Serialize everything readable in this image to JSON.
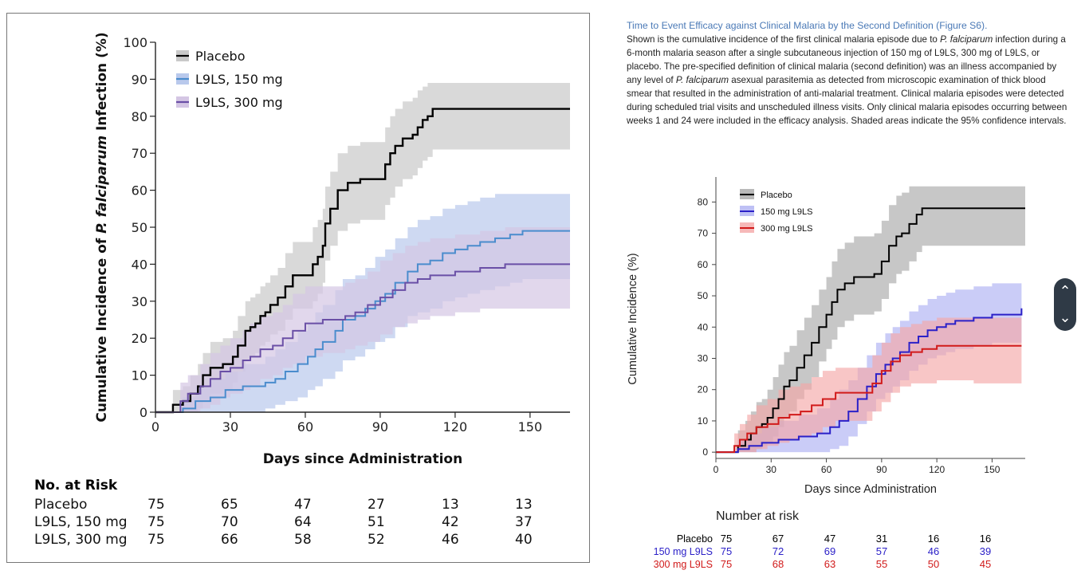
{
  "left_chart": {
    "ylabel_pre": "Cumulative Incidence of ",
    "ylabel_italic": "P. falciparum",
    "ylabel_post": " Infection (%)",
    "xlabel": "Days since Administration",
    "risk_title": "No. at Risk",
    "risk_rows": [
      {
        "label": "Placebo",
        "values": [
          "75",
          "65",
          "47",
          "27",
          "13",
          "13"
        ]
      },
      {
        "label": "L9LS, 150 mg",
        "values": [
          "75",
          "70",
          "64",
          "51",
          "42",
          "37"
        ]
      },
      {
        "label": "L9LS, 300 mg",
        "values": [
          "75",
          "66",
          "58",
          "52",
          "46",
          "40"
        ]
      }
    ]
  },
  "caption": {
    "title": "Time to Event Efficacy against Clinical Malaria by the Second Definition (Figure S6).",
    "parts": [
      {
        "t": "Shown is the cumulative incidence of the first clinical malaria episode due to "
      },
      {
        "t": "P. falciparum",
        "i": true
      },
      {
        "t": " infection during a 6-month malaria season after a single subcutaneous injection of 150 mg of L9LS, 300 mg of L9LS, or placebo. The pre-specified definition of clinical malaria (second definition) was an illness accompanied by any level of "
      },
      {
        "t": "P. falciparum",
        "i": true
      },
      {
        "t": " asexual parasitemia as detected from microscopic examination of thick blood smear that resulted in the administration of anti-malarial treatment. Clinical malaria episodes were detected during scheduled trial visits and unscheduled illness visits. Only clinical malaria episodes occurring between weeks 1 and 24 were included in the efficacy analysis. Shaded areas indicate the 95% confidence intervals."
      }
    ]
  },
  "right_chart": {
    "ylabel": "Cumulative Incidence (%)",
    "xlabel": "Days since Administration",
    "risk_title": "Number at risk",
    "risk_rows": [
      {
        "label": "Placebo",
        "color": "#000000",
        "values": [
          "75",
          "67",
          "47",
          "31",
          "16",
          "16"
        ]
      },
      {
        "label": "150 mg L9LS",
        "color": "#2b20c8",
        "values": [
          "75",
          "72",
          "69",
          "57",
          "46",
          "39"
        ]
      },
      {
        "label": "300 mg L9LS",
        "color": "#d11a1a",
        "values": [
          "75",
          "68",
          "63",
          "55",
          "50",
          "45"
        ]
      }
    ]
  },
  "chart_data": [
    {
      "type": "line",
      "subtype": "step-with-confidence-band",
      "xlabel": "Days since Administration",
      "ylabel": "Cumulative Incidence of P. falciparum Infection (%)",
      "xlim": [
        0,
        166
      ],
      "ylim": [
        0,
        100
      ],
      "xticks": [
        0,
        30,
        60,
        90,
        120,
        150
      ],
      "yticks": [
        0,
        10,
        20,
        30,
        40,
        50,
        60,
        70,
        80,
        90,
        100
      ],
      "legend_position": "top-left",
      "series": [
        {
          "name": "Placebo",
          "color": "#000000",
          "band_color": "#c9c9c9",
          "x": [
            0,
            7,
            11,
            14,
            17,
            19,
            22,
            27,
            31,
            33,
            36,
            38,
            40,
            42,
            44,
            46,
            49,
            52,
            55,
            61,
            63,
            65,
            67,
            68,
            70,
            73,
            77,
            82,
            92,
            94,
            96,
            99,
            101,
            103,
            105,
            107,
            109,
            111,
            166
          ],
          "y": [
            0,
            2,
            3,
            5,
            7,
            10,
            12,
            13,
            15,
            18,
            22,
            23,
            24,
            26,
            27,
            29,
            31,
            34,
            37,
            37,
            40,
            42,
            45,
            51,
            55,
            60,
            62,
            63,
            67,
            70,
            72,
            74,
            74,
            75,
            77,
            79,
            80,
            82,
            82
          ],
          "lower": [
            0,
            0,
            0,
            0,
            1,
            3,
            5,
            6,
            8,
            11,
            14,
            15,
            16,
            18,
            19,
            21,
            22,
            25,
            28,
            28,
            30,
            32,
            35,
            41,
            45,
            49,
            51,
            52,
            56,
            58,
            61,
            63,
            63,
            64,
            66,
            68,
            69,
            71,
            71
          ],
          "upper": [
            0,
            6,
            7,
            10,
            13,
            16,
            19,
            20,
            22,
            26,
            30,
            31,
            32,
            34,
            35,
            37,
            39,
            43,
            46,
            46,
            50,
            52,
            55,
            61,
            65,
            70,
            72,
            73,
            77,
            80,
            82,
            84,
            84,
            85,
            87,
            88,
            89,
            89,
            89
          ]
        },
        {
          "name": "L9LS, 150 mg",
          "color": "#4a8ccd",
          "band_color": "#b9c9ec",
          "x": [
            0,
            11,
            16,
            22,
            28,
            35,
            44,
            48,
            52,
            57,
            61,
            64,
            67,
            72,
            75,
            80,
            84,
            88,
            92,
            96,
            101,
            105,
            110,
            115,
            120,
            125,
            130,
            136,
            142,
            147,
            166
          ],
          "y": [
            0,
            1,
            3,
            4,
            6,
            7,
            8,
            9,
            11,
            13,
            15,
            17,
            19,
            22,
            25,
            26,
            28,
            30,
            32,
            35,
            38,
            40,
            41,
            43,
            44,
            45,
            46,
            47,
            48,
            49,
            49
          ],
          "lower": [
            0,
            0,
            0,
            0,
            0,
            0,
            1,
            2,
            3,
            4,
            6,
            7,
            9,
            11,
            14,
            15,
            17,
            19,
            20,
            23,
            26,
            27,
            28,
            30,
            31,
            32,
            33,
            34,
            35,
            36,
            36
          ],
          "upper": [
            0,
            4,
            7,
            9,
            11,
            13,
            15,
            17,
            19,
            22,
            24,
            27,
            29,
            33,
            36,
            37,
            39,
            42,
            44,
            47,
            50,
            52,
            53,
            55,
            56,
            57,
            58,
            59,
            59,
            59,
            59
          ]
        },
        {
          "name": "L9LS, 300 mg",
          "color": "#6a4fa6",
          "band_color": "#d4c6e4",
          "x": [
            0,
            10,
            13,
            18,
            22,
            26,
            30,
            35,
            38,
            42,
            47,
            51,
            55,
            60,
            63,
            67,
            70,
            76,
            80,
            85,
            90,
            95,
            100,
            105,
            110,
            120,
            130,
            140,
            150,
            166
          ],
          "y": [
            0,
            3,
            5,
            7,
            9,
            11,
            12,
            14,
            15,
            17,
            18,
            20,
            22,
            24,
            24,
            25,
            25,
            26,
            27,
            29,
            31,
            33,
            35,
            36,
            37,
            38,
            39,
            40,
            40,
            40
          ],
          "lower": [
            0,
            0,
            0,
            1,
            2,
            4,
            5,
            6,
            7,
            9,
            10,
            12,
            13,
            15,
            15,
            16,
            16,
            17,
            18,
            19,
            21,
            23,
            24,
            25,
            26,
            27,
            28,
            28,
            28,
            28
          ],
          "upper": [
            0,
            8,
            10,
            13,
            16,
            18,
            20,
            22,
            24,
            26,
            27,
            29,
            32,
            34,
            34,
            34,
            34,
            35,
            36,
            38,
            41,
            43,
            45,
            46,
            47,
            48,
            49,
            50,
            50,
            50
          ]
        }
      ]
    },
    {
      "type": "line",
      "subtype": "step-with-confidence-band",
      "xlabel": "Days since Administration",
      "ylabel": "Cumulative Incidence (%)",
      "xlim": [
        0,
        168
      ],
      "ylim": [
        -2,
        88
      ],
      "xticks": [
        0,
        30,
        60,
        90,
        120,
        150
      ],
      "yticks": [
        0,
        10,
        20,
        30,
        40,
        50,
        60,
        70,
        80
      ],
      "legend_position": "top-left",
      "series": [
        {
          "name": "Placebo",
          "color": "#000000",
          "band_color": "#a9a9a9",
          "x": [
            0,
            12,
            16,
            19,
            22,
            25,
            28,
            31,
            34,
            37,
            40,
            44,
            48,
            52,
            56,
            60,
            63,
            66,
            70,
            75,
            80,
            86,
            90,
            94,
            98,
            101,
            105,
            109,
            112,
            168
          ],
          "y": [
            0,
            2,
            4,
            6,
            8,
            9,
            11,
            14,
            17,
            21,
            23,
            27,
            31,
            35,
            40,
            44,
            48,
            52,
            54,
            56,
            56,
            57,
            61,
            66,
            69,
            70,
            73,
            76,
            78,
            78
          ],
          "lower": [
            0,
            0,
            0,
            0,
            1,
            2,
            3,
            5,
            8,
            11,
            13,
            17,
            20,
            24,
            29,
            33,
            36,
            40,
            42,
            44,
            44,
            45,
            49,
            54,
            57,
            58,
            61,
            64,
            66,
            66
          ],
          "upper": [
            0,
            7,
            10,
            13,
            16,
            17,
            20,
            24,
            28,
            32,
            34,
            39,
            43,
            47,
            52,
            56,
            61,
            65,
            67,
            69,
            69,
            70,
            74,
            79,
            82,
            83,
            85,
            85,
            85,
            85
          ]
        },
        {
          "name": "150 mg L9LS",
          "color": "#2b20c8",
          "band_color": "#aeb0f2",
          "x": [
            0,
            12,
            18,
            25,
            34,
            45,
            55,
            62,
            67,
            72,
            77,
            82,
            87,
            92,
            96,
            100,
            105,
            110,
            115,
            120,
            125,
            130,
            140,
            150,
            160,
            166
          ],
          "y": [
            0,
            1,
            2,
            3,
            4,
            5,
            6,
            8,
            10,
            13,
            17,
            21,
            25,
            28,
            30,
            32,
            35,
            37,
            39,
            40,
            41,
            42,
            43,
            44,
            44,
            46
          ],
          "lower": [
            0,
            0,
            0,
            0,
            0,
            0,
            0,
            1,
            2,
            5,
            9,
            13,
            17,
            19,
            21,
            23,
            26,
            28,
            30,
            31,
            32,
            33,
            34,
            35,
            35,
            36
          ],
          "upper": [
            0,
            4,
            6,
            8,
            10,
            12,
            14,
            17,
            20,
            23,
            27,
            31,
            35,
            38,
            40,
            42,
            45,
            47,
            49,
            50,
            51,
            52,
            53,
            54,
            54,
            56
          ]
        },
        {
          "name": "300 mg L9LS",
          "color": "#d11a1a",
          "band_color": "#f4a8a8",
          "x": [
            0,
            10,
            13,
            17,
            22,
            28,
            34,
            40,
            46,
            52,
            58,
            65,
            70,
            78,
            85,
            90,
            95,
            100,
            106,
            112,
            120,
            130,
            140,
            150,
            166
          ],
          "y": [
            0,
            2,
            4,
            6,
            8,
            9,
            11,
            12,
            13,
            15,
            17,
            19,
            19,
            19,
            22,
            26,
            29,
            31,
            32,
            33,
            34,
            34,
            34,
            34,
            34
          ],
          "lower": [
            0,
            0,
            0,
            0,
            1,
            2,
            3,
            4,
            5,
            6,
            8,
            10,
            10,
            10,
            13,
            16,
            19,
            21,
            22,
            22,
            23,
            23,
            22,
            22,
            22
          ],
          "upper": [
            0,
            6,
            9,
            12,
            15,
            17,
            20,
            21,
            22,
            24,
            26,
            27,
            27,
            27,
            31,
            35,
            38,
            40,
            41,
            42,
            43,
            43,
            43,
            43,
            43
          ]
        }
      ]
    }
  ]
}
